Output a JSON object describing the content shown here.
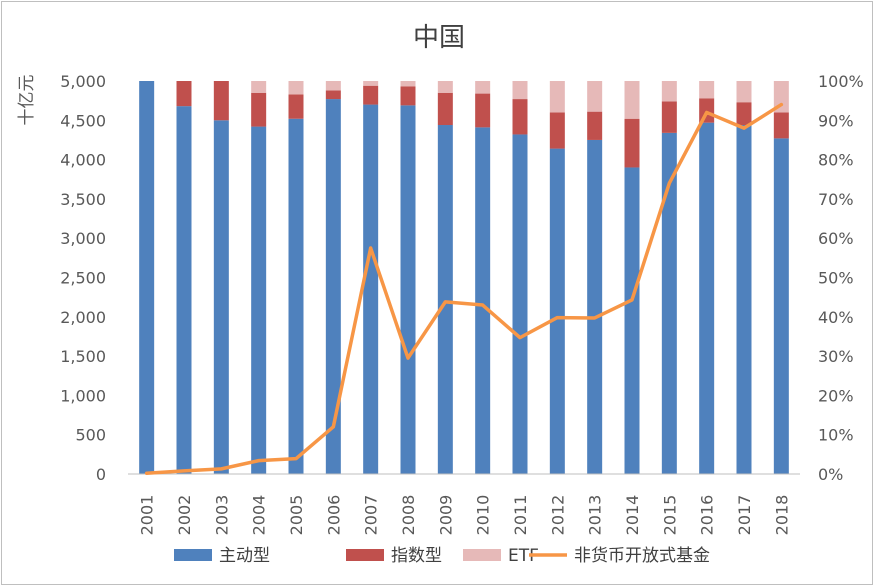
{
  "chart_data": {
    "type": "bar",
    "stacked": true,
    "title": "中国",
    "ylabel": "十亿元",
    "xlabel": "",
    "categories": [
      "2001",
      "2002",
      "2003",
      "2004",
      "2005",
      "2006",
      "2007",
      "2008",
      "2009",
      "2010",
      "2011",
      "2012",
      "2013",
      "2014",
      "2015",
      "2016",
      "2017",
      "2018"
    ],
    "y_left": {
      "ylim": [
        0,
        5000
      ],
      "ticks": [
        "0",
        "500",
        "1,000",
        "1,500",
        "2,000",
        "2,500",
        "3,000",
        "3,500",
        "4,000",
        "4,500",
        "5,000"
      ]
    },
    "y_right": {
      "ylim": [
        0,
        100
      ],
      "ticks": [
        "0%",
        "10%",
        "20%",
        "30%",
        "40%",
        "50%",
        "60%",
        "70%",
        "80%",
        "90%",
        "100%"
      ]
    },
    "series": [
      {
        "name": "主动型",
        "kind": "bar",
        "color": "#4f81bd",
        "values": [
          5000,
          4680,
          4500,
          4420,
          4520,
          4770,
          4700,
          4690,
          4440,
          4410,
          4320,
          4140,
          4250,
          3900,
          4340,
          4470,
          4440,
          4270
        ]
      },
      {
        "name": "指数型",
        "kind": "bar",
        "color": "#c0504d",
        "values": [
          0,
          320,
          500,
          430,
          310,
          110,
          240,
          240,
          410,
          430,
          450,
          460,
          360,
          620,
          400,
          310,
          290,
          330
        ]
      },
      {
        "name": "ETF",
        "kind": "bar",
        "color": "#e6b9b8",
        "values": [
          0,
          0,
          0,
          150,
          170,
          120,
          60,
          70,
          150,
          160,
          230,
          400,
          390,
          480,
          260,
          220,
          270,
          400
        ]
      },
      {
        "name": "非货币开放式基金",
        "kind": "line",
        "axis": "right",
        "color": "#f79646",
        "values": [
          0.2,
          0.8,
          1.3,
          3.4,
          3.9,
          12,
          57.5,
          29.5,
          43.8,
          43,
          34.7,
          39.8,
          39.7,
          44.3,
          74,
          92,
          88,
          94
        ]
      }
    ],
    "legend_position": "bottom",
    "grid": false
  }
}
